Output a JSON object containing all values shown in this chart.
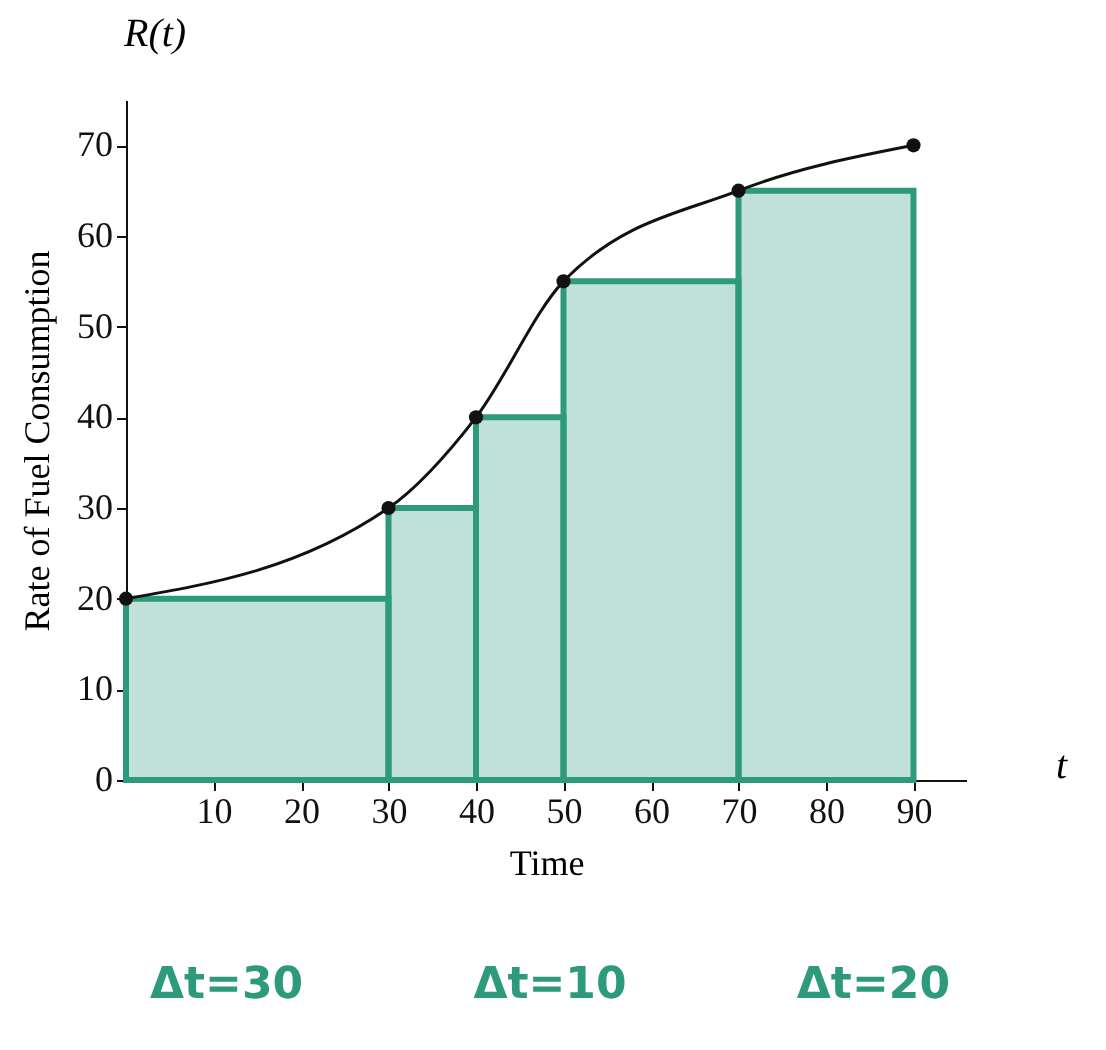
{
  "chart_data": {
    "type": "histogram",
    "xlabel": "Time",
    "ylabel": "Rate of Fuel Consumption",
    "annotations": [
      "R(t)",
      "t",
      "Δt=30",
      "Δt=10",
      "Δt=20"
    ],
    "series": [
      {
        "type": "histogram",
        "bins": [
          0,
          30,
          40,
          50,
          70,
          90
        ],
        "values": [
          20,
          30,
          40,
          55,
          65
        ],
        "color": "#2e9a7c"
      },
      {
        "type": "line",
        "x": [
          0,
          30,
          40,
          50,
          70,
          90
        ],
        "values": [
          20,
          30,
          40,
          55,
          65,
          70
        ],
        "color": "#111111",
        "marker": "circle"
      }
    ],
    "xlim": [
      0,
      96
    ],
    "xticks": [
      10,
      20,
      30,
      40,
      50,
      60,
      70,
      80,
      90
    ],
    "ylim": [
      0,
      75
    ],
    "yticks": [
      0,
      10,
      20,
      30,
      40,
      50,
      60,
      70
    ],
    "grid": false
  }
}
